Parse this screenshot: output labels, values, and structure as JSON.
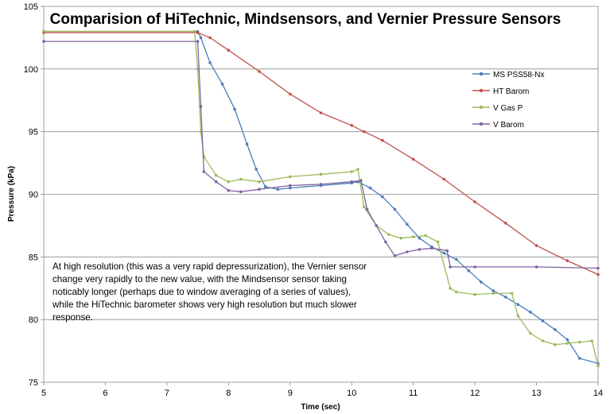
{
  "chart_data": {
    "type": "line",
    "title": "Comparision of HiTechnic, Mindsensors, and Vernier Pressure Sensors",
    "xlabel": "Time (sec)",
    "ylabel": "Pressure (kPa)",
    "xlim": [
      5,
      14
    ],
    "ylim": [
      75,
      105
    ],
    "xticks": [
      "5",
      "6",
      "7",
      "8",
      "9",
      "10",
      "11",
      "12",
      "13",
      "14"
    ],
    "yticks": [
      "75",
      "80",
      "85",
      "90",
      "95",
      "100",
      "105"
    ],
    "grid": "horizontal",
    "legend": "right",
    "annotation": "At high resolution (this was a very rapid depressurization), the Vernier sensor change very rapidly to the new value, with the Mindsensor sensor taking noticably longer (perhaps due to window averaging of a series of values), while the HiTechnic barometer shows very high resolution but much slower response.",
    "series": [
      {
        "name": "MS PSS58-Nx",
        "color": "#4a7ebb",
        "x": [
          5.0,
          7.5,
          7.55,
          7.7,
          7.9,
          8.1,
          8.3,
          8.45,
          8.6,
          8.8,
          9.0,
          9.5,
          10.0,
          10.1,
          10.3,
          10.5,
          10.7,
          10.9,
          11.1,
          11.3,
          11.5,
          11.7,
          11.9,
          12.1,
          12.3,
          12.5,
          12.7,
          12.9,
          13.1,
          13.3,
          13.5,
          13.7,
          14.0
        ],
        "y": [
          103.0,
          103.0,
          102.5,
          100.5,
          98.8,
          96.8,
          94.0,
          92.0,
          90.6,
          90.4,
          90.5,
          90.7,
          90.9,
          91.0,
          90.5,
          89.8,
          88.8,
          87.6,
          86.5,
          85.8,
          85.3,
          84.8,
          83.9,
          83.0,
          82.3,
          81.8,
          81.2,
          80.6,
          79.9,
          79.2,
          78.4,
          76.9,
          76.5
        ]
      },
      {
        "name": "HT Barom",
        "color": "#c0504d",
        "x": [
          5.0,
          7.5,
          7.7,
          8.0,
          8.5,
          9.0,
          9.5,
          10.0,
          10.2,
          10.5,
          11.0,
          11.5,
          12.0,
          12.5,
          13.0,
          13.5,
          14.0
        ],
        "y": [
          102.9,
          102.9,
          102.5,
          101.5,
          99.8,
          98.0,
          96.5,
          95.5,
          95.0,
          94.3,
          92.8,
          91.2,
          89.4,
          87.7,
          85.9,
          84.7,
          83.6
        ]
      },
      {
        "name": "V Gas P",
        "color": "#9bbb59",
        "x": [
          5.0,
          7.45,
          7.5,
          7.55,
          7.6,
          7.8,
          8.0,
          8.2,
          8.5,
          9.0,
          9.5,
          10.0,
          10.1,
          10.2,
          10.4,
          10.6,
          10.8,
          11.0,
          11.2,
          11.4,
          11.6,
          11.7,
          12.0,
          12.3,
          12.6,
          12.7,
          12.9,
          13.1,
          13.3,
          13.5,
          13.7,
          13.9,
          14.0
        ],
        "y": [
          103.0,
          103.0,
          100.0,
          95.0,
          93.0,
          91.5,
          91.0,
          91.2,
          91.0,
          91.4,
          91.6,
          91.8,
          92.0,
          89.0,
          87.5,
          86.8,
          86.5,
          86.6,
          86.7,
          86.2,
          82.5,
          82.2,
          82.0,
          82.1,
          82.1,
          80.3,
          78.9,
          78.3,
          78.0,
          78.1,
          78.2,
          78.3,
          76.3
        ]
      },
      {
        "name": "V Barom",
        "color": "#8064a2",
        "x": [
          5.0,
          7.5,
          7.55,
          7.6,
          7.8,
          8.0,
          8.2,
          8.5,
          9.0,
          9.5,
          10.0,
          10.15,
          10.25,
          10.4,
          10.55,
          10.7,
          10.9,
          11.1,
          11.3,
          11.55,
          11.6,
          12.0,
          13.0,
          14.0
        ],
        "y": [
          102.2,
          102.2,
          97.0,
          91.8,
          91.0,
          90.3,
          90.2,
          90.4,
          90.7,
          90.8,
          91.0,
          91.1,
          88.8,
          87.5,
          86.2,
          85.1,
          85.4,
          85.6,
          85.7,
          85.5,
          84.2,
          84.2,
          84.2,
          84.1
        ]
      }
    ]
  }
}
